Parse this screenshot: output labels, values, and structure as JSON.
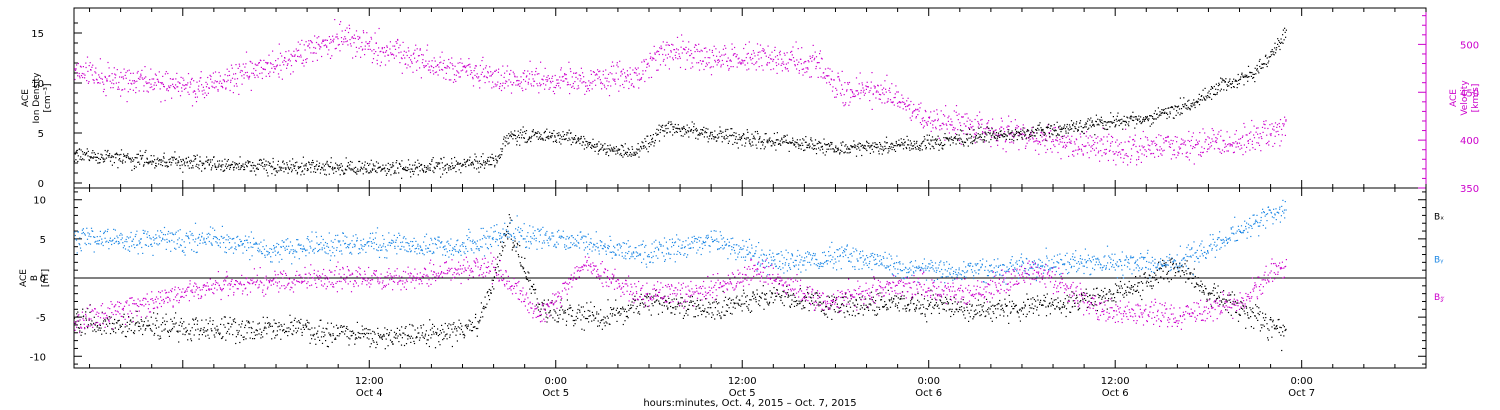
{
  "chart_data": [
    {
      "type": "scatter",
      "panel": "ACE plasma",
      "ylabel_left": [
        "ACE",
        "Ion Density",
        "[cm⁻³]"
      ],
      "ylabel_right": [
        "ACE",
        "Velocity",
        "[km/s]"
      ],
      "ylim_left": [
        -0.5,
        17.5
      ],
      "yticks_left": [
        0,
        5,
        10,
        15
      ],
      "ylim_right": [
        350,
        538
      ],
      "yticks_right": [
        350,
        400,
        450,
        500
      ],
      "colors": {
        "density": "#000000",
        "velocity": "#cc00cc"
      },
      "density_anchors": [
        {
          "x": "2015-10-03 17:00",
          "y": 2.8
        },
        {
          "x": "2015-10-04 03:00",
          "y": 1.8
        },
        {
          "x": "2015-10-04 09:00",
          "y": 1.6
        },
        {
          "x": "2015-10-04 15:00",
          "y": 1.5
        },
        {
          "x": "2015-10-04 20:00",
          "y": 2.2
        },
        {
          "x": "2015-10-04 21:00",
          "y": 4.8
        },
        {
          "x": "2015-10-05 01:00",
          "y": 4.5
        },
        {
          "x": "2015-10-05 03:00",
          "y": 3.5
        },
        {
          "x": "2015-10-05 05:00",
          "y": 3.0
        },
        {
          "x": "2015-10-05 07:00",
          "y": 5.5
        },
        {
          "x": "2015-10-05 12:00",
          "y": 4.5
        },
        {
          "x": "2015-10-05 18:00",
          "y": 3.6
        },
        {
          "x": "2015-10-05 22:00",
          "y": 3.8
        },
        {
          "x": "2015-10-06 02:00",
          "y": 4.5
        },
        {
          "x": "2015-10-06 06:00",
          "y": 5.0
        },
        {
          "x": "2015-10-06 10:00",
          "y": 5.8
        },
        {
          "x": "2015-10-06 14:00",
          "y": 6.5
        },
        {
          "x": "2015-10-06 17:00",
          "y": 8.0
        },
        {
          "x": "2015-10-06 19:00",
          "y": 10.0
        },
        {
          "x": "2015-10-06 21:00",
          "y": 11.0
        },
        {
          "x": "2015-10-06 23:00",
          "y": 15.0
        }
      ],
      "velocity_anchors": [
        {
          "x": "2015-10-03 17:00",
          "y": 470
        },
        {
          "x": "2015-10-04 01:00",
          "y": 455
        },
        {
          "x": "2015-10-04 06:00",
          "y": 480
        },
        {
          "x": "2015-10-04 10:00",
          "y": 505
        },
        {
          "x": "2015-10-04 14:00",
          "y": 490
        },
        {
          "x": "2015-10-04 20:00",
          "y": 465
        },
        {
          "x": "2015-10-05 02:00",
          "y": 462
        },
        {
          "x": "2015-10-05 05:00",
          "y": 470
        },
        {
          "x": "2015-10-05 07:00",
          "y": 495
        },
        {
          "x": "2015-10-05 10:00",
          "y": 485
        },
        {
          "x": "2015-10-05 14:00",
          "y": 485
        },
        {
          "x": "2015-10-05 17:00",
          "y": 480
        },
        {
          "x": "2015-10-05 18:00",
          "y": 455
        },
        {
          "x": "2015-10-05 22:00",
          "y": 445
        },
        {
          "x": "2015-10-06 00:00",
          "y": 420
        },
        {
          "x": "2015-10-06 05:00",
          "y": 408
        },
        {
          "x": "2015-10-06 09:00",
          "y": 398
        },
        {
          "x": "2015-10-06 12:00",
          "y": 390
        },
        {
          "x": "2015-10-06 16:00",
          "y": 395
        },
        {
          "x": "2015-10-06 20:00",
          "y": 400
        },
        {
          "x": "2015-10-06 23:00",
          "y": 410
        }
      ]
    },
    {
      "type": "scatter",
      "panel": "ACE magnetic field",
      "ylabel_left": [
        "ACE",
        "B",
        "[nT]"
      ],
      "ylim": [
        -11.5,
        11.5
      ],
      "yticks": [
        -10,
        -5,
        0,
        5,
        10
      ],
      "zero_line": true,
      "series": [
        {
          "name": "Bₓ",
          "color": "#000000",
          "anchors": [
            {
              "x": "2015-10-03 17:00",
              "y": -5.5
            },
            {
              "x": "2015-10-04 02:00",
              "y": -6.5
            },
            {
              "x": "2015-10-04 08:00",
              "y": -6.5
            },
            {
              "x": "2015-10-04 14:00",
              "y": -7.5
            },
            {
              "x": "2015-10-04 19:00",
              "y": -6.0
            },
            {
              "x": "2015-10-04 21:00",
              "y": 6.5
            },
            {
              "x": "2015-10-04 23:00",
              "y": -4.0
            },
            {
              "x": "2015-10-05 03:00",
              "y": -5.0
            },
            {
              "x": "2015-10-05 06:00",
              "y": -3.0
            },
            {
              "x": "2015-10-05 10:00",
              "y": -4.0
            },
            {
              "x": "2015-10-05 14:00",
              "y": -2.0
            },
            {
              "x": "2015-10-05 18:00",
              "y": -3.5
            },
            {
              "x": "2015-10-05 22:00",
              "y": -3.0
            },
            {
              "x": "2015-10-06 03:00",
              "y": -4.0
            },
            {
              "x": "2015-10-06 08:00",
              "y": -3.5
            },
            {
              "x": "2015-10-06 12:00",
              "y": -2.0
            },
            {
              "x": "2015-10-06 16:00",
              "y": 1.5
            },
            {
              "x": "2015-10-06 19:00",
              "y": -3.0
            },
            {
              "x": "2015-10-06 23:00",
              "y": -7.0
            }
          ]
        },
        {
          "name": "Bᵧ",
          "color": "#1e88e5",
          "anchors": [
            {
              "x": "2015-10-03 17:00",
              "y": 5.0
            },
            {
              "x": "2015-10-04 02:00",
              "y": 5.0
            },
            {
              "x": "2015-10-04 06:00",
              "y": 3.5
            },
            {
              "x": "2015-10-04 12:00",
              "y": 4.5
            },
            {
              "x": "2015-10-04 18:00",
              "y": 4.0
            },
            {
              "x": "2015-10-04 21:00",
              "y": 6.0
            },
            {
              "x": "2015-10-05 00:00",
              "y": 5.0
            },
            {
              "x": "2015-10-05 06:00",
              "y": 3.0
            },
            {
              "x": "2015-10-05 10:00",
              "y": 5.0
            },
            {
              "x": "2015-10-05 14:00",
              "y": 2.0
            },
            {
              "x": "2015-10-05 19:00",
              "y": 3.0
            },
            {
              "x": "2015-10-05 23:00",
              "y": 1.0
            },
            {
              "x": "2015-10-06 04:00",
              "y": 1.0
            },
            {
              "x": "2015-10-06 09:00",
              "y": 2.0
            },
            {
              "x": "2015-10-06 12:00",
              "y": 2.0
            },
            {
              "x": "2015-10-06 16:00",
              "y": 2.0
            },
            {
              "x": "2015-10-06 20:00",
              "y": 6.0
            },
            {
              "x": "2015-10-06 23:00",
              "y": 9.0
            }
          ]
        },
        {
          "name": "B𝓏",
          "color": "#cc00cc",
          "anchors": [
            {
              "x": "2015-10-03 17:00",
              "y": -5.5
            },
            {
              "x": "2015-10-04 02:00",
              "y": -1.0
            },
            {
              "x": "2015-10-04 08:00",
              "y": 0.0
            },
            {
              "x": "2015-10-04 14:00",
              "y": 0.0
            },
            {
              "x": "2015-10-04 20:00",
              "y": 1.5
            },
            {
              "x": "2015-10-04 23:00",
              "y": -5.0
            },
            {
              "x": "2015-10-05 02:00",
              "y": 2.0
            },
            {
              "x": "2015-10-05 05:00",
              "y": -2.0
            },
            {
              "x": "2015-10-05 09:00",
              "y": -2.0
            },
            {
              "x": "2015-10-05 13:00",
              "y": 1.0
            },
            {
              "x": "2015-10-05 17:00",
              "y": -3.0
            },
            {
              "x": "2015-10-05 22:00",
              "y": -1.0
            },
            {
              "x": "2015-10-06 03:00",
              "y": -2.0
            },
            {
              "x": "2015-10-06 07:00",
              "y": 1.0
            },
            {
              "x": "2015-10-06 11:00",
              "y": -4.0
            },
            {
              "x": "2015-10-06 16:00",
              "y": -5.0
            },
            {
              "x": "2015-10-06 20:00",
              "y": -3.0
            },
            {
              "x": "2015-10-06 23:00",
              "y": 2.0
            }
          ]
        }
      ]
    }
  ],
  "x_axis": {
    "range": [
      "2015-10-03 17:00",
      "2015-10-07 08:00"
    ],
    "major_ticks": [
      {
        "time": "12:00",
        "day": "Oct 4",
        "at": "2015-10-04 12:00"
      },
      {
        "time": "0:00",
        "day": "Oct 5",
        "at": "2015-10-05 00:00"
      },
      {
        "time": "12:00",
        "day": "Oct 5",
        "at": "2015-10-05 12:00"
      },
      {
        "time": "0:00",
        "day": "Oct 6",
        "at": "2015-10-06 00:00"
      },
      {
        "time": "12:00",
        "day": "Oct 6",
        "at": "2015-10-06 12:00"
      },
      {
        "time": "0:00",
        "day": "Oct 7",
        "at": "2015-10-07 00:00"
      }
    ],
    "title": "hours:minutes, Oct.  4, 2015 – Oct.  7, 2015",
    "data_end": "2015-10-06 23:00"
  }
}
